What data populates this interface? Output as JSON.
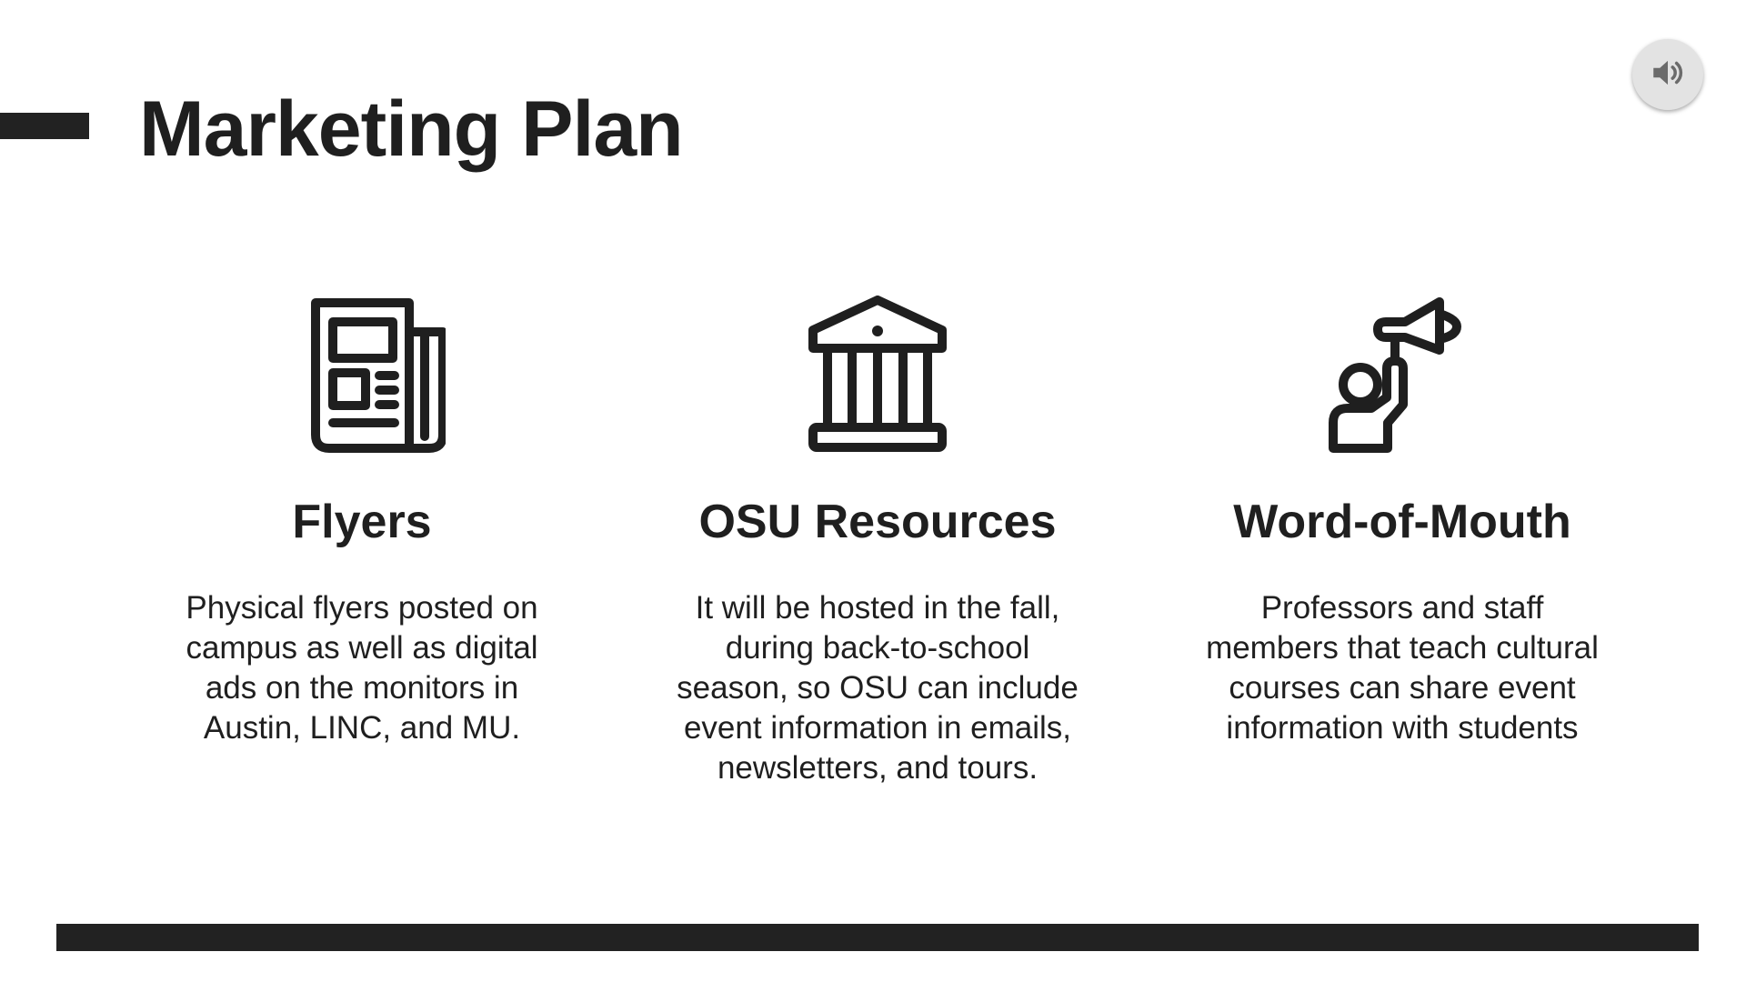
{
  "slide": {
    "title": "Marketing Plan",
    "audio_icon": "speaker-volume-icon",
    "columns": [
      {
        "icon": "newspaper-icon",
        "heading": "Flyers",
        "body": "Physical flyers posted on campus as well as digital ads on the monitors in Austin, LINC, and MU."
      },
      {
        "icon": "institution-building-icon",
        "heading": "OSU Resources",
        "body": "It will be hosted in the fall, during back-to-school season, so OSU can include event information in emails, newsletters, and tours."
      },
      {
        "icon": "person-megaphone-icon",
        "heading": "Word-of-Mouth",
        "body": "Professors and staff members that teach cultural courses can share event information with students"
      }
    ]
  },
  "colors": {
    "text": "#1f1f1f",
    "bars": "#222222",
    "audio_button": "#e3e3e3",
    "background": "#ffffff"
  }
}
